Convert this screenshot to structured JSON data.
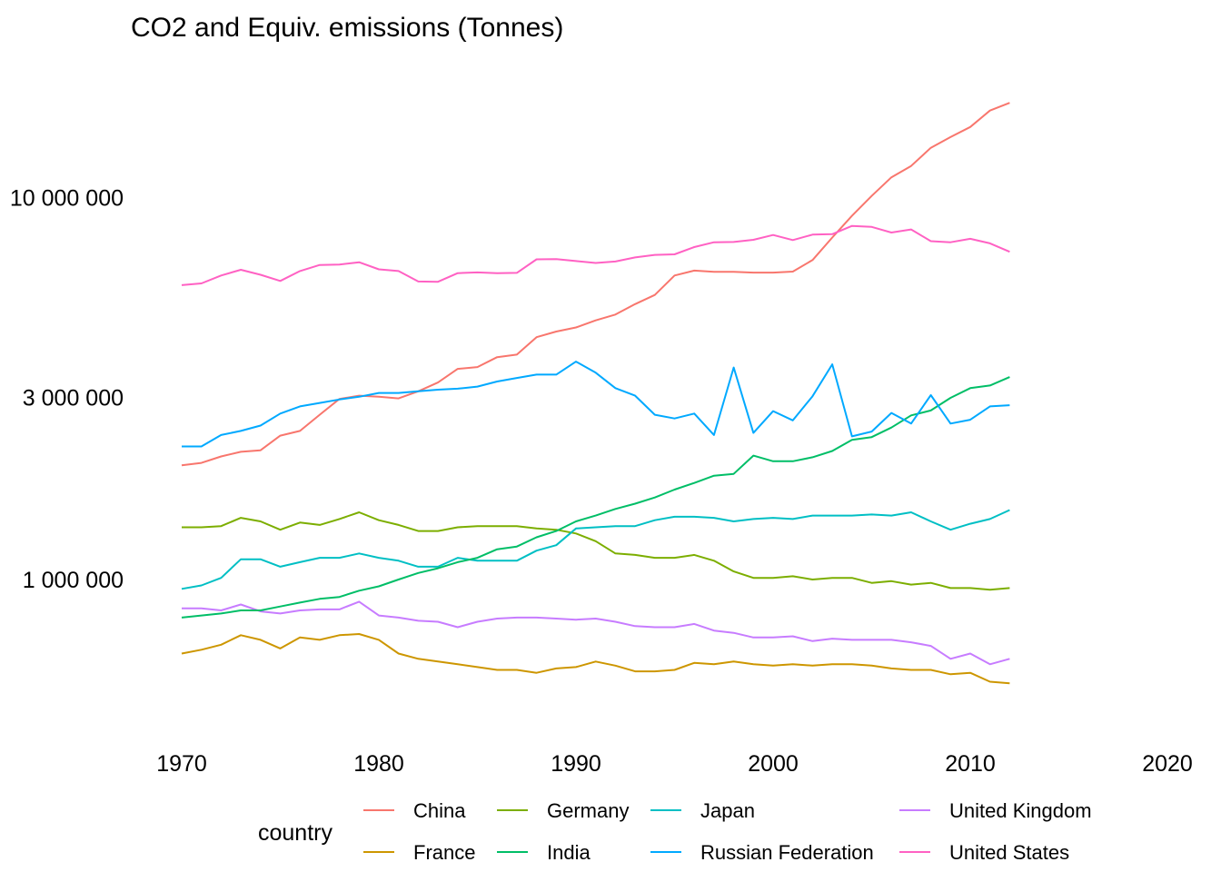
{
  "chart_data": {
    "type": "line",
    "title": "CO2 and Equiv. emissions (Tonnes)",
    "xlabel": "",
    "ylabel": "",
    "y_scale": "log",
    "grid": false,
    "xlim": [
      1970,
      2020
    ],
    "x_ticks": [
      1970,
      1980,
      1990,
      2000,
      2010,
      2020
    ],
    "x_tick_labels": [
      "1970",
      "1980",
      "1990",
      "2000",
      "2010",
      "2020"
    ],
    "y_ticks": [
      1000000,
      3000000,
      10000000
    ],
    "y_tick_labels": [
      "1 000 000",
      "3 000 000",
      "10 000 000"
    ],
    "legend": {
      "title": "country",
      "position": "bottom"
    },
    "x": [
      1970,
      1971,
      1972,
      1973,
      1974,
      1975,
      1976,
      1977,
      1978,
      1979,
      1980,
      1981,
      1982,
      1983,
      1984,
      1985,
      1986,
      1987,
      1988,
      1989,
      1990,
      1991,
      1992,
      1993,
      1994,
      1995,
      1996,
      1997,
      1998,
      1999,
      2000,
      2001,
      2002,
      2003,
      2004,
      2005,
      2006,
      2007,
      2008,
      2009,
      2010,
      2011,
      2012
    ],
    "series": [
      {
        "name": "China",
        "color": "#F8766D",
        "values": [
          1990000,
          2020000,
          2100000,
          2160000,
          2180000,
          2380000,
          2450000,
          2700000,
          2970000,
          3030000,
          3010000,
          2980000,
          3110000,
          3280000,
          3560000,
          3600000,
          3820000,
          3880000,
          4310000,
          4460000,
          4570000,
          4770000,
          4940000,
          5260000,
          5560000,
          6250000,
          6440000,
          6390000,
          6390000,
          6360000,
          6360000,
          6400000,
          6860000,
          7860000,
          8960000,
          10100000,
          11300000,
          12100000,
          13500000,
          14400000,
          15300000,
          16900000,
          17700000
        ]
      },
      {
        "name": "Germany",
        "color": "#7CAE00",
        "values": [
          1370000,
          1370000,
          1380000,
          1450000,
          1420000,
          1350000,
          1410000,
          1390000,
          1440000,
          1500000,
          1430000,
          1390000,
          1340000,
          1340000,
          1370000,
          1380000,
          1380000,
          1380000,
          1360000,
          1350000,
          1320000,
          1260000,
          1170000,
          1160000,
          1140000,
          1140000,
          1160000,
          1120000,
          1050000,
          1010000,
          1010000,
          1020000,
          1000000,
          1010000,
          1010000,
          980000,
          990000,
          970000,
          980000,
          950000,
          950000,
          940000,
          950000
        ]
      },
      {
        "name": "Japan",
        "color": "#00BFC4",
        "values": [
          945000,
          965000,
          1010000,
          1130000,
          1130000,
          1080000,
          1110000,
          1140000,
          1140000,
          1170000,
          1140000,
          1120000,
          1080000,
          1080000,
          1140000,
          1120000,
          1120000,
          1120000,
          1190000,
          1230000,
          1360000,
          1370000,
          1380000,
          1380000,
          1430000,
          1460000,
          1460000,
          1450000,
          1420000,
          1440000,
          1450000,
          1440000,
          1470000,
          1470000,
          1470000,
          1480000,
          1470000,
          1500000,
          1420000,
          1350000,
          1400000,
          1440000,
          1520000
        ]
      },
      {
        "name": "United Kingdom",
        "color": "#C77CFF",
        "values": [
          840000,
          840000,
          830000,
          860000,
          825000,
          815000,
          830000,
          835000,
          835000,
          875000,
          805000,
          795000,
          780000,
          775000,
          750000,
          775000,
          790000,
          795000,
          795000,
          790000,
          785000,
          790000,
          775000,
          755000,
          750000,
          750000,
          765000,
          735000,
          725000,
          705000,
          705000,
          710000,
          690000,
          700000,
          695000,
          695000,
          695000,
          685000,
          670000,
          620000,
          640000,
          600000,
          620000
        ]
      },
      {
        "name": "France",
        "color": "#CD9600",
        "values": [
          640000,
          655000,
          675000,
          715000,
          695000,
          660000,
          705000,
          695000,
          715000,
          720000,
          695000,
          640000,
          620000,
          610000,
          600000,
          590000,
          580000,
          580000,
          570000,
          585000,
          590000,
          610000,
          595000,
          575000,
          575000,
          580000,
          605000,
          600000,
          610000,
          600000,
          595000,
          600000,
          595000,
          600000,
          600000,
          595000,
          585000,
          580000,
          580000,
          565000,
          570000,
          540000,
          535000
        ]
      },
      {
        "name": "India",
        "color": "#00BE67",
        "values": [
          795000,
          805000,
          815000,
          830000,
          830000,
          850000,
          870000,
          890000,
          900000,
          935000,
          960000,
          1000000,
          1040000,
          1070000,
          1110000,
          1140000,
          1200000,
          1220000,
          1290000,
          1340000,
          1420000,
          1470000,
          1530000,
          1580000,
          1640000,
          1720000,
          1790000,
          1870000,
          1890000,
          2110000,
          2040000,
          2040000,
          2090000,
          2170000,
          2320000,
          2360000,
          2500000,
          2690000,
          2770000,
          2990000,
          3170000,
          3220000,
          3390000
        ]
      },
      {
        "name": "Russian Federation",
        "color": "#00A9FF",
        "values": [
          2230000,
          2230000,
          2390000,
          2450000,
          2530000,
          2720000,
          2840000,
          2900000,
          2960000,
          3010000,
          3080000,
          3080000,
          3110000,
          3140000,
          3160000,
          3200000,
          3300000,
          3370000,
          3440000,
          3440000,
          3720000,
          3480000,
          3170000,
          3030000,
          2700000,
          2640000,
          2720000,
          2390000,
          3590000,
          2420000,
          2760000,
          2610000,
          3020000,
          3660000,
          2370000,
          2440000,
          2730000,
          2560000,
          3040000,
          2560000,
          2620000,
          2840000,
          2860000
        ]
      },
      {
        "name": "United States",
        "color": "#FF61C3",
        "values": [
          5900000,
          5960000,
          6250000,
          6470000,
          6280000,
          6050000,
          6420000,
          6660000,
          6680000,
          6770000,
          6490000,
          6420000,
          6030000,
          6020000,
          6340000,
          6370000,
          6340000,
          6350000,
          6890000,
          6900000,
          6820000,
          6740000,
          6800000,
          6970000,
          7080000,
          7100000,
          7420000,
          7640000,
          7650000,
          7750000,
          7980000,
          7740000,
          8000000,
          8020000,
          8430000,
          8380000,
          8100000,
          8250000,
          7690000,
          7640000,
          7800000,
          7590000,
          7210000
        ]
      }
    ]
  },
  "legend_layout": {
    "rows": [
      [
        "China",
        "Germany",
        "Japan",
        "United Kingdom"
      ],
      [
        "France",
        "India",
        "Russian Federation",
        "United States"
      ]
    ]
  }
}
